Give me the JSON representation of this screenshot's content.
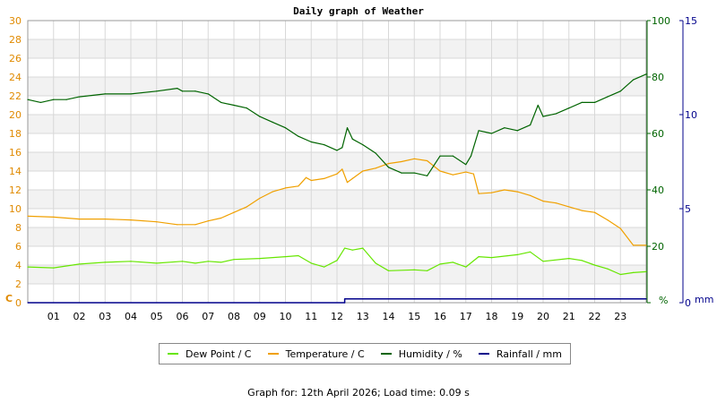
{
  "chart_data": {
    "type": "line",
    "title": "Daily graph of Weather",
    "x_tick_labels": [
      "01",
      "02",
      "03",
      "04",
      "05",
      "06",
      "07",
      "08",
      "09",
      "10",
      "11",
      "12",
      "13",
      "14",
      "15",
      "16",
      "17",
      "18",
      "19",
      "20",
      "21",
      "22",
      "23"
    ],
    "x_range_hours": [
      0,
      24
    ],
    "left_axis": {
      "unit_label": "C",
      "ylim": [
        0,
        30
      ],
      "ticks": [
        0,
        2,
        4,
        6,
        8,
        10,
        12,
        14,
        16,
        18,
        20,
        22,
        24,
        26,
        28,
        30
      ],
      "color": "#e08a00"
    },
    "right_axis_1": {
      "unit_label": "%",
      "ylim": [
        0,
        100
      ],
      "ticks": [
        0,
        20,
        40,
        60,
        80,
        100
      ],
      "color": "#006400"
    },
    "right_axis_2": {
      "unit_label": "mm",
      "ylim": [
        0,
        15
      ],
      "ticks": [
        0,
        5,
        10,
        15
      ],
      "color": "#00008b"
    },
    "series": [
      {
        "name": "Dew Point / C",
        "axis": "left",
        "color": "#66e600",
        "x": [
          0,
          1,
          2,
          3,
          4,
          5,
          6,
          6.5,
          7,
          7.5,
          8,
          9,
          10,
          10.5,
          11,
          11.5,
          12,
          12.3,
          12.6,
          13,
          13.5,
          14,
          15,
          15.5,
          16,
          16.5,
          17,
          17.5,
          18,
          19,
          19.5,
          20,
          21,
          21.5,
          22,
          22.5,
          23,
          23.5,
          24
        ],
        "y": [
          3.8,
          3.7,
          4.1,
          4.3,
          4.4,
          4.2,
          4.4,
          4.2,
          4.4,
          4.3,
          4.6,
          4.7,
          4.9,
          5.0,
          4.2,
          3.8,
          4.5,
          5.8,
          5.6,
          5.8,
          4.2,
          3.4,
          3.5,
          3.4,
          4.1,
          4.3,
          3.8,
          4.9,
          4.8,
          5.1,
          5.4,
          4.4,
          4.7,
          4.5,
          4.0,
          3.6,
          3.0,
          3.2,
          3.3
        ]
      },
      {
        "name": "Temperature / C",
        "axis": "left",
        "color": "#f0a000",
        "x": [
          0,
          1,
          2,
          3,
          4,
          5,
          5.8,
          6.5,
          7,
          7.5,
          8,
          8.5,
          9,
          9.5,
          10,
          10.5,
          10.8,
          11,
          11.5,
          12,
          12.2,
          12.4,
          12.6,
          13,
          13.5,
          14,
          14.5,
          15,
          15.5,
          16,
          16.5,
          17,
          17.3,
          17.5,
          18,
          18.5,
          19,
          19.5,
          20,
          20.5,
          21,
          21.5,
          22,
          22.5,
          23,
          23.5,
          24
        ],
        "y": [
          9.2,
          9.1,
          8.9,
          8.9,
          8.8,
          8.6,
          8.3,
          8.3,
          8.7,
          9.0,
          9.6,
          10.2,
          11.1,
          11.8,
          12.2,
          12.4,
          13.3,
          13.0,
          13.2,
          13.7,
          14.2,
          12.8,
          13.2,
          14.0,
          14.3,
          14.8,
          15.0,
          15.3,
          15.1,
          14.0,
          13.6,
          13.9,
          13.7,
          11.6,
          11.7,
          12.0,
          11.8,
          11.4,
          10.8,
          10.6,
          10.2,
          9.8,
          9.6,
          8.8,
          7.9,
          6.1,
          6.1
        ]
      },
      {
        "name": "Humidity / %",
        "axis": "right_1",
        "color": "#006400",
        "x": [
          0,
          0.5,
          1,
          1.5,
          2,
          3,
          4,
          5,
          5.8,
          6,
          6.5,
          7,
          7.5,
          8,
          8.5,
          9,
          9.5,
          10,
          10.5,
          11,
          11.5,
          12,
          12.2,
          12.4,
          12.6,
          13,
          13.5,
          14,
          14.5,
          15,
          15.5,
          16,
          16.5,
          17,
          17.2,
          17.5,
          18,
          18.5,
          19,
          19.5,
          19.8,
          20,
          20.5,
          21,
          21.5,
          22,
          22.5,
          23,
          23.5,
          24
        ],
        "y": [
          72,
          71,
          72,
          72,
          73,
          74,
          74,
          75,
          76,
          75,
          75,
          74,
          71,
          70,
          69,
          66,
          64,
          62,
          59,
          57,
          56,
          54,
          55,
          62,
          58,
          56,
          53,
          48,
          46,
          46,
          45,
          52,
          52,
          49,
          52,
          61,
          60,
          62,
          61,
          63,
          70,
          66,
          67,
          69,
          71,
          71,
          73,
          75,
          79,
          81
        ]
      },
      {
        "name": "Rainfall / mm",
        "axis": "right_2",
        "color": "#00008b",
        "x": [
          0,
          12.3,
          12.3,
          24
        ],
        "y": [
          0,
          0,
          0.2,
          0.2
        ]
      }
    ],
    "grid": true,
    "legend_position": "bottom"
  },
  "footer": {
    "text": "Graph for: 12th April 2026; Load time: 0.09 s"
  }
}
